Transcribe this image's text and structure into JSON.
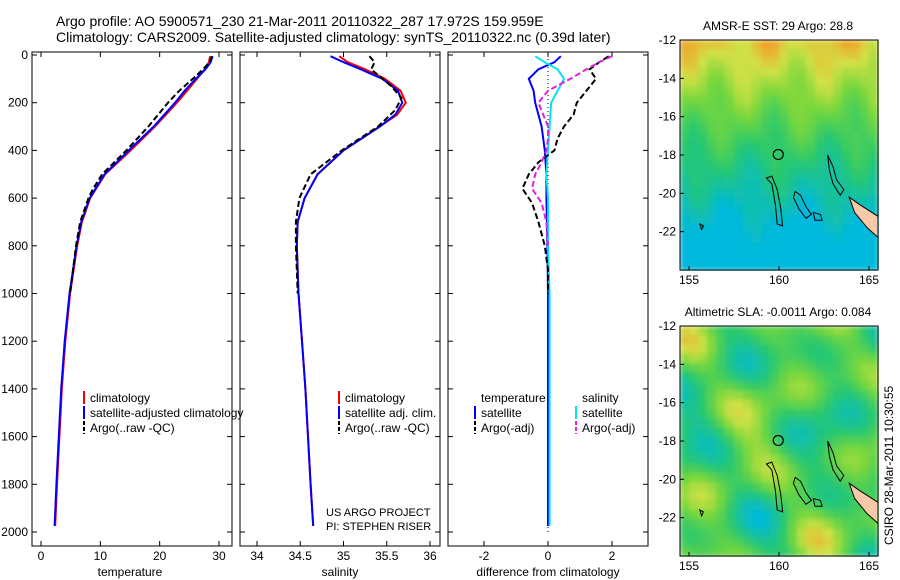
{
  "header": {
    "line1": "Argo profile: AO 5900571_230 21-Mar-2011 20110322_287 17.972S 159.959E",
    "line2": "Climatology: CARS2009. Satellite-adjusted climatology: synTS_20110322.nc (0.39d later)"
  },
  "credit": {
    "project": "US ARGO PROJECT",
    "pi": "PI: STEPHEN RISER",
    "stamp": "CSIRO 28-Mar-2011 10:30:55"
  },
  "colors": {
    "red": "#ff0000",
    "blue": "#0000ff",
    "black": "#000000",
    "cyan": "#00e5ee",
    "magenta": "#e020e0"
  },
  "chart_data": [
    {
      "id": "temperature",
      "type": "line",
      "xlabel": "temperature",
      "xlim": [
        -2,
        32
      ],
      "xticks": [
        0,
        10,
        20,
        30
      ],
      "ylim": [
        2050,
        0
      ],
      "yticks": [
        0,
        200,
        400,
        600,
        800,
        1000,
        1200,
        1400,
        1600,
        1800,
        2000
      ],
      "legend": [
        "climatology",
        "satellite-adjusted climatology",
        "Argo(..raw -QC)"
      ],
      "series": [
        {
          "name": "climatology",
          "color": "red",
          "dash": false,
          "depth": [
            5,
            30,
            60,
            100,
            150,
            200,
            300,
            400,
            500,
            600,
            700,
            800,
            1000,
            1200,
            1400,
            1600,
            1800,
            1975
          ],
          "values": [
            28.5,
            28.3,
            27.6,
            26.3,
            24.6,
            22.9,
            19.2,
            15.1,
            10.8,
            8.3,
            6.9,
            6.1,
            4.9,
            4.1,
            3.5,
            3.1,
            2.7,
            2.4
          ]
        },
        {
          "name": "satellite-adjusted climatology",
          "color": "blue",
          "dash": false,
          "depth": [
            5,
            30,
            60,
            100,
            150,
            200,
            300,
            400,
            500,
            600,
            700,
            800,
            1000,
            1200,
            1400,
            1600,
            1800,
            1975
          ],
          "values": [
            28.9,
            28.6,
            27.7,
            26.1,
            24.2,
            22.6,
            19.0,
            14.8,
            10.7,
            8.2,
            6.8,
            6.0,
            4.8,
            4.0,
            3.4,
            3.0,
            2.6,
            2.3
          ]
        },
        {
          "name": "Argo(..raw -QC)",
          "color": "black",
          "dash": true,
          "depth": [
            5,
            30,
            60,
            100,
            150,
            200,
            300,
            400,
            500,
            560,
            600,
            700,
            800,
            1000
          ],
          "values": [
            28.8,
            28.4,
            27.3,
            25.6,
            23.3,
            21.4,
            18.1,
            14.4,
            10.3,
            8.8,
            8.0,
            6.6,
            5.9,
            4.9
          ]
        }
      ]
    },
    {
      "id": "salinity",
      "type": "line",
      "xlabel": "salinity",
      "xlim": [
        33.8,
        36.1
      ],
      "xticks": [
        34,
        34.5,
        35,
        35.5,
        36
      ],
      "ylim": [
        2050,
        0
      ],
      "legend": [
        "climatology",
        "satellite adj. clim.",
        "Argo(..raw -QC)"
      ],
      "series": [
        {
          "name": "climatology",
          "color": "red",
          "dash": false,
          "depth": [
            5,
            30,
            60,
            100,
            150,
            200,
            250,
            300,
            400,
            500,
            600,
            700,
            800,
            1000,
            1200,
            1400,
            1600,
            1800,
            1975
          ],
          "values": [
            34.95,
            35.05,
            35.25,
            35.48,
            35.66,
            35.72,
            35.62,
            35.42,
            35.0,
            34.7,
            34.55,
            34.47,
            34.46,
            34.48,
            34.52,
            34.56,
            34.59,
            34.62,
            34.65
          ]
        },
        {
          "name": "satellite adj. clim.",
          "color": "blue",
          "dash": false,
          "depth": [
            5,
            30,
            60,
            100,
            150,
            200,
            250,
            300,
            400,
            500,
            600,
            700,
            800,
            1000,
            1200,
            1400,
            1600,
            1800,
            1975
          ],
          "values": [
            34.85,
            35.0,
            35.2,
            35.45,
            35.63,
            35.68,
            35.6,
            35.42,
            35.0,
            34.7,
            34.55,
            34.47,
            34.46,
            34.48,
            34.52,
            34.56,
            34.59,
            34.62,
            34.65
          ]
        },
        {
          "name": "Argo(..raw -QC)",
          "color": "black",
          "dash": true,
          "depth": [
            5,
            30,
            60,
            90,
            130,
            180,
            230,
            300,
            400,
            500,
            600,
            700,
            800,
            1000
          ],
          "values": [
            35.3,
            35.36,
            35.32,
            35.42,
            35.55,
            35.67,
            35.6,
            35.4,
            34.98,
            34.62,
            34.49,
            34.45,
            34.45,
            34.47
          ]
        }
      ]
    },
    {
      "id": "difference",
      "type": "line",
      "xlabel": "difference from climatology",
      "xlim": [
        -2.9,
        2.9
      ],
      "xticks": [
        -2,
        0,
        2
      ],
      "ylim": [
        2050,
        0
      ],
      "legend": [
        "temperature",
        "salinity",
        "satellite",
        "satellite",
        "Argo(-adj)",
        "Argo(-adj)"
      ],
      "series": [
        {
          "name": "temperature satellite",
          "color": "blue",
          "dash": false,
          "depth": [
            5,
            30,
            60,
            100,
            150,
            200,
            300,
            400,
            500,
            600,
            700,
            800,
            1000,
            1400,
            1975
          ],
          "values": [
            0.4,
            0.2,
            -0.3,
            -0.6,
            -0.45,
            -0.4,
            -0.2,
            -0.1,
            -0.05,
            -0.05,
            -0.03,
            -0.02,
            0.0,
            0.0,
            0.0
          ]
        },
        {
          "name": "salinity satellite",
          "color": "cyan",
          "dash": false,
          "depth": [
            5,
            30,
            60,
            100,
            150,
            200,
            300,
            400,
            500,
            600,
            800,
            1000,
            1400,
            1975
          ],
          "values": [
            -0.4,
            -0.1,
            0.3,
            0.5,
            0.3,
            0.1,
            0.05,
            0.0,
            -0.05,
            0.0,
            0.0,
            0.05,
            0.05,
            0.05
          ]
        },
        {
          "name": "temperature Argo(-adj)",
          "color": "black",
          "dash": true,
          "depth": [
            5,
            30,
            60,
            100,
            150,
            200,
            250,
            300,
            350,
            400,
            450,
            500,
            560,
            620,
            700,
            800,
            900,
            1000
          ],
          "values": [
            1.9,
            1.6,
            1.3,
            1.5,
            1.2,
            0.9,
            0.8,
            0.5,
            0.3,
            0.2,
            -0.3,
            -0.6,
            -0.8,
            -0.5,
            -0.3,
            -0.1,
            0.0,
            0.0
          ]
        },
        {
          "name": "salinity Argo(-adj)",
          "color": "magenta",
          "dash": true,
          "depth": [
            5,
            30,
            60,
            100,
            150,
            200,
            250,
            300,
            350,
            400,
            450,
            500,
            560,
            620,
            700,
            800
          ],
          "values": [
            2.0,
            1.6,
            1.2,
            0.7,
            0.0,
            -0.3,
            -0.15,
            0.0,
            0.0,
            -0.05,
            -0.2,
            -0.4,
            -0.5,
            -0.2,
            -0.05,
            0.0
          ]
        }
      ]
    },
    {
      "id": "sst-map",
      "type": "heatmap",
      "title": "AMSR-E SST: 29 Argo: 28.8",
      "xlim": [
        154.5,
        165.5
      ],
      "ylim": [
        -24,
        -12
      ],
      "xticks": [
        155,
        160,
        165
      ],
      "yticks": [
        -12,
        -14,
        -16,
        -18,
        -20,
        -22
      ],
      "float_position": {
        "lon": 159.959,
        "lat": -17.972
      }
    },
    {
      "id": "sla-map",
      "type": "heatmap",
      "title": "Altimetric SLA: -0.0011 Argo: 0.084",
      "xlim": [
        154.5,
        165.5
      ],
      "ylim": [
        -24,
        -12
      ],
      "xticks": [
        155,
        160,
        165
      ],
      "yticks": [
        -12,
        -14,
        -16,
        -18,
        -20,
        -22
      ],
      "float_position": {
        "lon": 159.959,
        "lat": -17.972
      }
    }
  ]
}
